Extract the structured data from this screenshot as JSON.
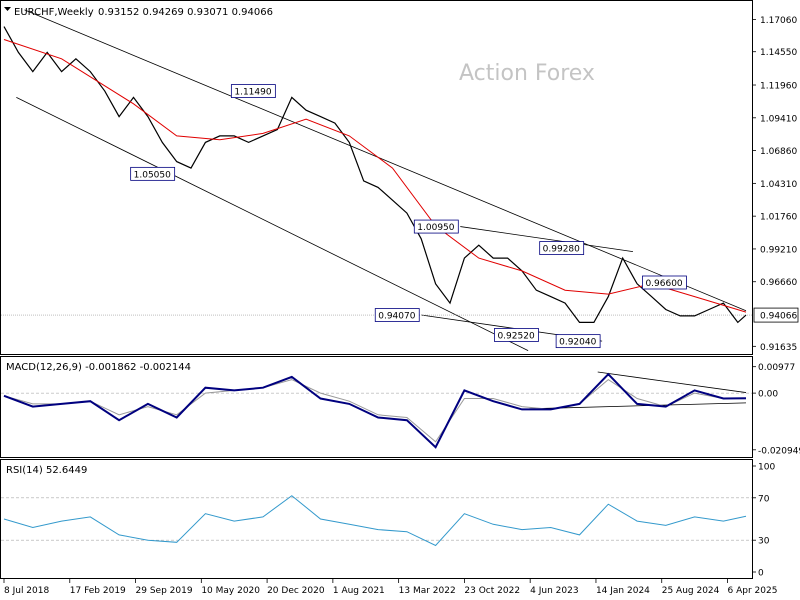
{
  "header": {
    "symbol_label": "EURCHF,Weekly",
    "ohlc_text": "0.93152 0.94269 0.93071 0.94066",
    "watermark": "Action Forex"
  },
  "chart_data": [
    {
      "type": "line",
      "panel": "price",
      "ylim": [
        0.9135,
        1.1795
      ],
      "y_ticks": [
        "1.17060",
        "1.14550",
        "1.11960",
        "1.09410",
        "1.06860",
        "1.04310",
        "1.01760",
        "0.99210",
        "0.96660",
        "0.94066",
        "0.91635"
      ],
      "current_price": "0.94066",
      "x_labels": [
        "8 Jul 2018",
        "17 Feb 2019",
        "29 Sep 2019",
        "10 May 2020",
        "20 Dec 2020",
        "1 Aug 2021",
        "13 Mar 2022",
        "23 Oct 2022",
        "4 Jun 2023",
        "14 Jan 2024",
        "25 Aug 2024",
        "6 Apr 2025"
      ],
      "x_range": [
        "2018-07-08",
        "2025-06-08"
      ],
      "series": [
        {
          "name": "",
          "role": "price",
          "color": "#000000",
          "x": [
            "2018-07-08",
            "2018-08-26",
            "2018-10-14",
            "2018-12-02",
            "2019-01-20",
            "2019-03-10",
            "2019-04-28",
            "2019-06-16",
            "2019-08-04",
            "2019-09-22",
            "2019-11-10",
            "2019-12-29",
            "2020-02-16",
            "2020-04-05",
            "2020-05-24",
            "2020-07-12",
            "2020-08-30",
            "2020-10-18",
            "2020-12-06",
            "2021-01-24",
            "2021-03-14",
            "2021-05-02",
            "2021-06-20",
            "2021-08-08",
            "2021-09-26",
            "2021-11-14",
            "2022-01-02",
            "2022-02-20",
            "2022-04-10",
            "2022-05-29",
            "2022-07-17",
            "2022-09-04",
            "2022-10-23",
            "2022-12-11",
            "2023-01-29",
            "2023-03-19",
            "2023-05-07",
            "2023-06-25",
            "2023-08-13",
            "2023-10-01",
            "2023-11-19",
            "2024-01-07",
            "2024-02-25",
            "2024-04-14",
            "2024-06-02",
            "2024-07-21",
            "2024-09-08",
            "2024-10-27",
            "2024-12-15",
            "2025-02-02",
            "2025-03-23",
            "2025-05-11",
            "2025-06-08"
          ],
          "values": [
            1.165,
            1.145,
            1.13,
            1.145,
            1.13,
            1.14,
            1.13,
            1.115,
            1.095,
            1.11,
            1.095,
            1.075,
            1.06,
            1.055,
            1.075,
            1.08,
            1.08,
            1.075,
            1.08,
            1.085,
            1.11,
            1.1,
            1.095,
            1.09,
            1.075,
            1.045,
            1.04,
            1.03,
            1.02,
            1.0,
            0.965,
            0.95,
            0.985,
            0.995,
            0.985,
            0.985,
            0.975,
            0.96,
            0.955,
            0.95,
            0.935,
            0.935,
            0.955,
            0.985,
            0.965,
            0.955,
            0.945,
            0.94,
            0.94,
            0.945,
            0.95,
            0.935,
            0.94066
          ]
        },
        {
          "name": "",
          "role": "moving-average",
          "color": "#e00000",
          "x": [
            "2018-07-08",
            "2019-01-20",
            "2019-09-22",
            "2020-02-16",
            "2020-07-12",
            "2020-12-06",
            "2021-05-02",
            "2021-09-26",
            "2022-02-20",
            "2022-07-17",
            "2022-12-11",
            "2023-05-07",
            "2023-10-01",
            "2024-02-25",
            "2024-07-21",
            "2024-12-15",
            "2025-06-08"
          ],
          "values": [
            1.155,
            1.14,
            1.105,
            1.08,
            1.077,
            1.082,
            1.093,
            1.08,
            1.055,
            1.01,
            0.985,
            0.975,
            0.96,
            0.957,
            0.965,
            0.955,
            0.943
          ]
        }
      ],
      "annotations": [
        {
          "label": "1.11490",
          "date": "2021-01-24",
          "value": 1.1149
        },
        {
          "label": "1.05050",
          "date": "2020-02-16",
          "value": 1.0505
        },
        {
          "label": "1.00950",
          "date": "2022-10-09",
          "value": 1.0095
        },
        {
          "label": "0.99280",
          "date": "2023-12-10",
          "value": 0.9928
        },
        {
          "label": "0.96600",
          "date": "2024-11-24",
          "value": 0.966
        },
        {
          "label": "0.94070",
          "date": "2022-05-29",
          "value": 0.9407
        },
        {
          "label": "0.92520",
          "date": "2023-07-09",
          "value": 0.9252
        },
        {
          "label": "0.92040",
          "date": "2024-02-04",
          "value": 0.9204
        }
      ],
      "trendlines": [
        {
          "from": [
            "2018-09-16",
            1.178
          ],
          "to": [
            "2025-06-08",
            0.944
          ]
        },
        {
          "from": [
            "2018-08-19",
            1.11
          ],
          "to": [
            "2023-05-28",
            0.913
          ]
        },
        {
          "from": [
            "2022-10-09",
            1.0095
          ],
          "to": [
            "2024-05-19",
            0.99
          ]
        },
        {
          "from": [
            "2022-05-29",
            0.9407
          ],
          "to": [
            "2024-02-04",
            0.9204
          ]
        }
      ],
      "grid": false
    },
    {
      "type": "line",
      "panel": "macd",
      "title": "MACD(12,26,9) -0.001862 -0.002144",
      "ylim": [
        -0.0225,
        0.0115
      ],
      "y_ticks": [
        "0.00977",
        "0.00",
        "-0.020949"
      ],
      "series": [
        {
          "name": "MACD",
          "color": "#00007f",
          "x": [
            "2018-07-08",
            "2018-10-14",
            "2019-01-20",
            "2019-04-28",
            "2019-08-04",
            "2019-11-10",
            "2020-02-16",
            "2020-05-24",
            "2020-08-30",
            "2020-12-06",
            "2021-03-14",
            "2021-06-20",
            "2021-09-26",
            "2022-01-02",
            "2022-04-10",
            "2022-07-17",
            "2022-10-23",
            "2023-01-29",
            "2023-05-07",
            "2023-08-13",
            "2023-11-19",
            "2024-02-25",
            "2024-06-02",
            "2024-09-08",
            "2024-12-15",
            "2025-03-23",
            "2025-06-08"
          ],
          "values": [
            -0.001,
            -0.005,
            -0.004,
            -0.003,
            -0.01,
            -0.004,
            -0.009,
            0.002,
            0.001,
            0.002,
            0.006,
            -0.002,
            -0.004,
            -0.009,
            -0.01,
            -0.02,
            0.001,
            -0.003,
            -0.006,
            -0.006,
            -0.004,
            0.007,
            -0.004,
            -0.005,
            0.001,
            -0.002,
            -0.0019
          ]
        },
        {
          "name": "Signal",
          "color": "#999999",
          "x": [
            "2018-07-08",
            "2018-10-14",
            "2019-01-20",
            "2019-04-28",
            "2019-08-04",
            "2019-11-10",
            "2020-02-16",
            "2020-05-24",
            "2020-08-30",
            "2020-12-06",
            "2021-03-14",
            "2021-06-20",
            "2021-09-26",
            "2022-01-02",
            "2022-04-10",
            "2022-07-17",
            "2022-10-23",
            "2023-01-29",
            "2023-05-07",
            "2023-08-13",
            "2023-11-19",
            "2024-02-25",
            "2024-06-02",
            "2024-09-08",
            "2024-12-15",
            "2025-03-23",
            "2025-06-08"
          ],
          "values": [
            -0.001,
            -0.004,
            -0.004,
            -0.003,
            -0.008,
            -0.005,
            -0.008,
            0.0,
            0.001,
            0.002,
            0.005,
            0.0,
            -0.003,
            -0.008,
            -0.009,
            -0.018,
            -0.002,
            -0.002,
            -0.005,
            -0.006,
            -0.004,
            0.005,
            -0.002,
            -0.005,
            0.0,
            -0.002,
            -0.0021
          ]
        }
      ],
      "grid": false
    },
    {
      "type": "line",
      "panel": "rsi",
      "title": "RSI(14) 52.6449",
      "ylim": [
        0,
        100
      ],
      "y_ticks": [
        "100",
        "70",
        "30",
        "0"
      ],
      "series": [
        {
          "name": "RSI",
          "color": "#3399cc",
          "x": [
            "2018-07-08",
            "2018-10-14",
            "2019-01-20",
            "2019-04-28",
            "2019-08-04",
            "2019-11-10",
            "2020-02-16",
            "2020-05-24",
            "2020-08-30",
            "2020-12-06",
            "2021-03-14",
            "2021-06-20",
            "2021-09-26",
            "2022-01-02",
            "2022-04-10",
            "2022-07-17",
            "2022-10-23",
            "2023-01-29",
            "2023-05-07",
            "2023-08-13",
            "2023-11-19",
            "2024-02-25",
            "2024-06-02",
            "2024-09-08",
            "2024-12-15",
            "2025-03-23",
            "2025-06-08"
          ],
          "values": [
            50,
            42,
            48,
            52,
            35,
            30,
            28,
            55,
            48,
            52,
            72,
            50,
            45,
            40,
            38,
            25,
            55,
            45,
            40,
            42,
            35,
            64,
            48,
            44,
            52,
            48,
            52.64
          ]
        }
      ],
      "grid": false
    }
  ]
}
